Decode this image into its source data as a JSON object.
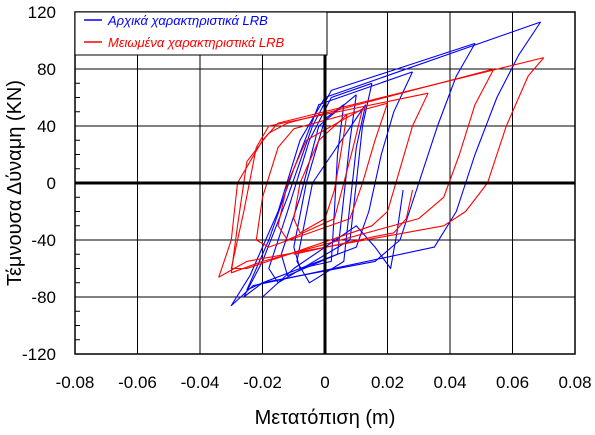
{
  "chart_data": {
    "type": "line",
    "title": "",
    "xlabel": "Μετατόπιση (m)",
    "ylabel": "Τέμνουσα Δύναμη (KN)",
    "xlim": [
      -0.08,
      0.08
    ],
    "ylim": [
      -120,
      120
    ],
    "xticks": [
      -0.08,
      -0.06,
      -0.04,
      -0.02,
      0,
      0.02,
      0.04,
      0.06,
      0.08
    ],
    "xtick_labels": [
      "-0.08",
      "-0.06",
      "-0.04",
      "-0.02",
      "0",
      "0.02",
      "0.04",
      "0.06",
      "0.08"
    ],
    "yticks": [
      -120,
      -80,
      -40,
      0,
      40,
      80,
      120
    ],
    "ytick_labels": [
      "-120",
      "-80",
      "-40",
      "0",
      "40",
      "80",
      "120"
    ],
    "grid": true,
    "legend_position": "top-left",
    "series": [
      {
        "name": "Αρχικά χαρακτηριστικά LRB",
        "color": "#0000ff",
        "loops": [
          [
            [
              0.069,
              113
            ],
            [
              0.062,
              90
            ],
            [
              0.055,
              60
            ],
            [
              0.048,
              20
            ],
            [
              0.042,
              -20
            ],
            [
              0.035,
              -45
            ],
            [
              -0.023,
              -72
            ],
            [
              -0.03,
              -86
            ],
            [
              -0.024,
              -65
            ],
            [
              -0.015,
              -20
            ],
            [
              -0.008,
              30
            ],
            [
              0.0,
              60
            ],
            [
              0.069,
              113
            ]
          ],
          [
            [
              0.048,
              98
            ],
            [
              0.042,
              75
            ],
            [
              0.036,
              40
            ],
            [
              0.03,
              0
            ],
            [
              0.024,
              -40
            ],
            [
              0.016,
              -55
            ],
            [
              -0.02,
              -70
            ],
            [
              -0.026,
              -80
            ],
            [
              -0.02,
              -55
            ],
            [
              -0.012,
              -10
            ],
            [
              -0.004,
              40
            ],
            [
              0.002,
              65
            ],
            [
              0.048,
              98
            ]
          ],
          [
            [
              0.028,
              78
            ],
            [
              0.022,
              50
            ],
            [
              0.018,
              20
            ],
            [
              0.014,
              -20
            ],
            [
              0.01,
              -45
            ],
            [
              -0.02,
              -70
            ],
            [
              -0.025,
              -75
            ],
            [
              -0.018,
              -40
            ],
            [
              -0.01,
              10
            ],
            [
              -0.002,
              55
            ],
            [
              0.028,
              78
            ]
          ],
          [
            [
              0.015,
              70
            ],
            [
              0.012,
              40
            ],
            [
              0.01,
              0
            ],
            [
              0.008,
              -40
            ],
            [
              -0.015,
              -70
            ],
            [
              -0.018,
              -60
            ],
            [
              -0.012,
              -20
            ],
            [
              -0.005,
              30
            ],
            [
              0.002,
              60
            ],
            [
              0.015,
              70
            ]
          ],
          [
            [
              0.01,
              62
            ],
            [
              0.008,
              30
            ],
            [
              0.006,
              -10
            ],
            [
              0.004,
              -50
            ],
            [
              -0.012,
              -65
            ],
            [
              -0.014,
              -50
            ],
            [
              -0.008,
              -10
            ],
            [
              -0.002,
              40
            ],
            [
              0.01,
              62
            ]
          ],
          [
            [
              0.006,
              55
            ],
            [
              0.004,
              20
            ],
            [
              0.003,
              -20
            ],
            [
              0.002,
              -55
            ],
            [
              -0.008,
              -60
            ],
            [
              -0.01,
              -45
            ],
            [
              -0.006,
              0
            ],
            [
              0.0,
              45
            ],
            [
              0.006,
              55
            ]
          ],
          [
            [
              0.025,
              -5
            ],
            [
              0.023,
              -35
            ],
            [
              0.021,
              -60
            ],
            [
              0.016,
              -45
            ],
            [
              0.01,
              -30
            ],
            [
              -0.01,
              -60
            ],
            [
              -0.02,
              -80
            ]
          ],
          [
            [
              0.013,
              55
            ],
            [
              0.01,
              25
            ],
            [
              0.008,
              -15
            ],
            [
              0.006,
              -55
            ],
            [
              -0.005,
              -70
            ],
            [
              -0.009,
              -55
            ],
            [
              -0.004,
              0
            ],
            [
              0.013,
              55
            ]
          ]
        ]
      },
      {
        "name": "Μειωμένα χαρακτηριστικά LRB",
        "color": "#ff0000",
        "loops": [
          [
            [
              0.07,
              88
            ],
            [
              0.065,
              75
            ],
            [
              0.058,
              40
            ],
            [
              0.052,
              0
            ],
            [
              0.045,
              -20
            ],
            [
              0.038,
              -30
            ],
            [
              -0.025,
              -55
            ],
            [
              -0.034,
              -66
            ],
            [
              -0.03,
              -40
            ],
            [
              -0.028,
              0
            ],
            [
              -0.02,
              30
            ],
            [
              -0.015,
              42
            ],
            [
              0.07,
              88
            ]
          ],
          [
            [
              0.054,
              80
            ],
            [
              0.048,
              55
            ],
            [
              0.043,
              20
            ],
            [
              0.038,
              -10
            ],
            [
              0.03,
              -25
            ],
            [
              -0.02,
              -55
            ],
            [
              -0.03,
              -63
            ],
            [
              -0.028,
              -30
            ],
            [
              -0.025,
              15
            ],
            [
              -0.018,
              35
            ],
            [
              -0.012,
              42
            ],
            [
              0.054,
              80
            ]
          ],
          [
            [
              0.033,
              63
            ],
            [
              0.028,
              40
            ],
            [
              0.024,
              10
            ],
            [
              0.02,
              -20
            ],
            [
              0.015,
              -30
            ],
            [
              -0.025,
              -60
            ],
            [
              -0.03,
              -60
            ],
            [
              -0.026,
              -20
            ],
            [
              -0.022,
              25
            ],
            [
              -0.018,
              40
            ],
            [
              0.033,
              63
            ]
          ],
          [
            [
              0.02,
              56
            ],
            [
              0.016,
              30
            ],
            [
              0.012,
              0
            ],
            [
              0.008,
              -25
            ],
            [
              -0.018,
              -45
            ],
            [
              -0.022,
              -40
            ],
            [
              -0.02,
              -10
            ],
            [
              -0.015,
              25
            ],
            [
              -0.01,
              38
            ],
            [
              0.02,
              56
            ]
          ],
          [
            [
              0.012,
              52
            ],
            [
              0.009,
              25
            ],
            [
              0.006,
              0
            ],
            [
              0.003,
              -25
            ],
            [
              -0.012,
              -40
            ],
            [
              -0.015,
              -30
            ],
            [
              -0.012,
              0
            ],
            [
              -0.006,
              30
            ],
            [
              0.012,
              52
            ]
          ],
          [
            [
              0.007,
              48
            ],
            [
              0.005,
              20
            ],
            [
              0.003,
              -5
            ],
            [
              0.0,
              -25
            ],
            [
              -0.008,
              -35
            ],
            [
              -0.01,
              -25
            ],
            [
              -0.008,
              0
            ],
            [
              -0.002,
              30
            ],
            [
              0.007,
              48
            ]
          ],
          [
            [
              0.028,
              -5
            ],
            [
              0.026,
              -25
            ],
            [
              0.022,
              -35
            ],
            [
              0.015,
              -38
            ],
            [
              -0.01,
              -50
            ]
          ]
        ]
      }
    ]
  }
}
